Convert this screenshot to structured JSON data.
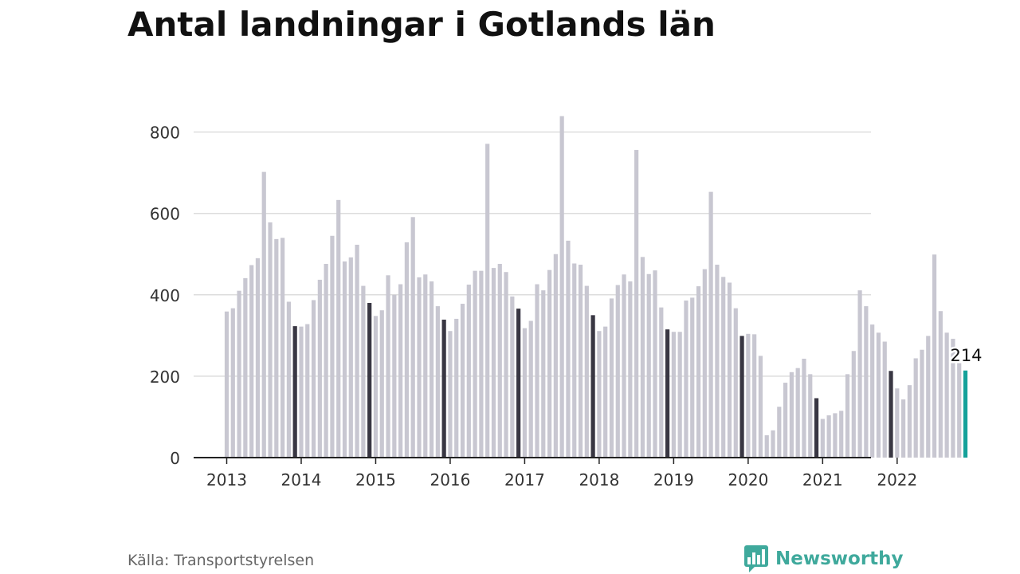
{
  "colors": {
    "bar_default": "#c8c7d1",
    "bar_highlight": "#393743",
    "bar_latest": "#14a19a",
    "grid": "#dddddd",
    "axis": "#222222",
    "brand": "#3fa99c"
  },
  "footer": {
    "source": "Källa: Transportstyrelsen",
    "brand_name": "Newsworthy",
    "brand_icon": "bar-chart-speech-bubble-icon"
  },
  "chart_data": {
    "type": "bar",
    "title": "Antal landningar i Gotlands län",
    "xlabel": "",
    "ylabel": "",
    "ylim": [
      0,
      870
    ],
    "yticks": [
      0,
      200,
      400,
      600,
      800
    ],
    "xticks": [
      "2013",
      "2014",
      "2015",
      "2016",
      "2017",
      "2018",
      "2019",
      "2020",
      "2021",
      "2022"
    ],
    "grid": "horizontal",
    "legend": "none",
    "start": "2013-01",
    "end": "2022-12",
    "highlighted_month": "December",
    "annotation": {
      "month": "2022-12",
      "label": "214"
    },
    "values": [
      359,
      367,
      410,
      441,
      473,
      490,
      702,
      578,
      537,
      540,
      383,
      323,
      322,
      328,
      387,
      437,
      476,
      545,
      633,
      482,
      492,
      523,
      422,
      380,
      348,
      362,
      448,
      400,
      426,
      529,
      591,
      443,
      450,
      433,
      372,
      339,
      311,
      341,
      378,
      425,
      459,
      459,
      771,
      466,
      476,
      456,
      396,
      366,
      318,
      336,
      426,
      411,
      461,
      500,
      839,
      533,
      477,
      474,
      422,
      350,
      311,
      322,
      391,
      424,
      450,
      433,
      756,
      493,
      451,
      460,
      369,
      315,
      309,
      309,
      386,
      393,
      421,
      463,
      653,
      474,
      444,
      430,
      367,
      299,
      304,
      303,
      250,
      55,
      67,
      125,
      184,
      210,
      220,
      243,
      205,
      146,
      95,
      104,
      109,
      115,
      205,
      262,
      411,
      372,
      327,
      307,
      285,
      213,
      170,
      143,
      178,
      244,
      265,
      299,
      499,
      360,
      307,
      292,
      232,
      214
    ]
  }
}
